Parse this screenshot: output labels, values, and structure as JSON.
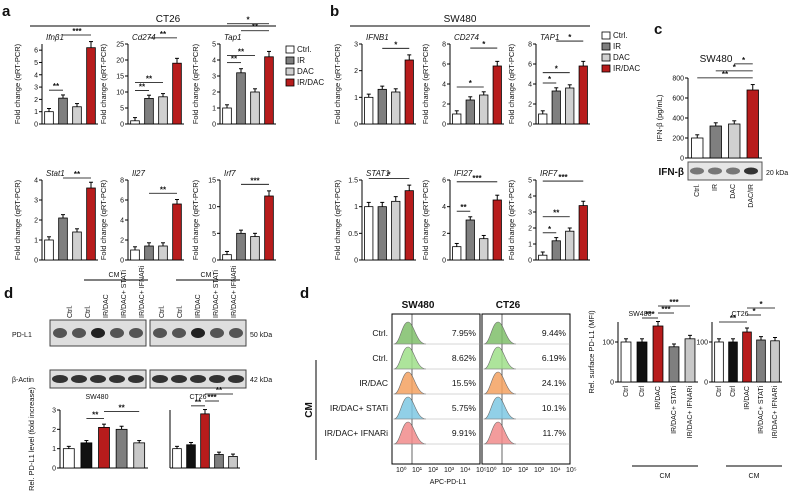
{
  "panels": {
    "a": {
      "label": "a",
      "title": "CT26",
      "charts": [
        {
          "gene": "Ifnβ1",
          "values": [
            1,
            2.1,
            1.4,
            6.2
          ],
          "ymax": 6.5,
          "ticks": [
            0,
            1,
            2,
            3,
            4,
            5,
            6
          ],
          "sig": [
            {
              "a": 0,
              "b": 1,
              "t": "**"
            },
            {
              "a": 1,
              "b": 3,
              "t": "***"
            }
          ]
        },
        {
          "gene": "Cd274",
          "values": [
            1,
            8,
            8.5,
            19
          ],
          "ymax": 25,
          "ticks": [
            0,
            5,
            10,
            15,
            20,
            25
          ],
          "sig": [
            {
              "a": 0,
              "b": 1,
              "t": "**"
            },
            {
              "a": 0,
              "b": 2,
              "t": "**"
            },
            {
              "a": 1,
              "b": 3,
              "t": "**"
            }
          ]
        },
        {
          "gene": "Tap1",
          "values": [
            1,
            3.2,
            2,
            4.2
          ],
          "ymax": 5,
          "ticks": [
            0,
            1,
            2,
            3,
            4,
            5
          ],
          "sig": [
            {
              "a": 0,
              "b": 1,
              "t": "**"
            },
            {
              "a": 0,
              "b": 2,
              "t": "**"
            },
            {
              "a": 1,
              "b": 3,
              "t": "**"
            },
            {
              "a": 0,
              "b": 3,
              "t": "*"
            }
          ]
        },
        {
          "gene": "Stat1",
          "values": [
            1,
            2.1,
            1.4,
            3.6
          ],
          "ymax": 4,
          "ticks": [
            0,
            1,
            2,
            3,
            4
          ],
          "sig": [
            {
              "a": 1,
              "b": 3,
              "t": "**"
            }
          ]
        },
        {
          "gene": "Il27",
          "values": [
            1,
            1.4,
            1.4,
            5.6
          ],
          "ymax": 8,
          "ticks": [
            0,
            2,
            4,
            6,
            8
          ],
          "sig": [
            {
              "a": 1,
              "b": 3,
              "t": "**"
            }
          ]
        },
        {
          "gene": "Irf7",
          "values": [
            1,
            5,
            4.4,
            12
          ],
          "ymax": 15,
          "ticks": [
            0,
            5,
            10,
            15
          ],
          "sig": [
            {
              "a": 1,
              "b": 3,
              "t": "***"
            }
          ]
        }
      ]
    },
    "b": {
      "label": "b",
      "title": "SW480",
      "charts": [
        {
          "gene": "IFNB1",
          "values": [
            1,
            1.3,
            1.2,
            2.4
          ],
          "ymax": 3,
          "ticks": [
            0,
            1,
            2,
            3
          ],
          "sig": [
            {
              "a": 1,
              "b": 3,
              "t": "*"
            }
          ]
        },
        {
          "gene": "CD274",
          "values": [
            1,
            2.4,
            2.9,
            5.8
          ],
          "ymax": 8,
          "ticks": [
            0,
            2,
            4,
            6,
            8
          ],
          "sig": [
            {
              "a": 0,
              "b": 2,
              "t": "*"
            },
            {
              "a": 1,
              "b": 3,
              "t": "*"
            }
          ]
        },
        {
          "gene": "TAP1",
          "values": [
            1,
            3.3,
            3.6,
            5.8
          ],
          "ymax": 8,
          "ticks": [
            0,
            2,
            4,
            6,
            8
          ],
          "sig": [
            {
              "a": 0,
              "b": 1,
              "t": "*"
            },
            {
              "a": 0,
              "b": 2,
              "t": "*"
            },
            {
              "a": 1,
              "b": 3,
              "t": "*"
            }
          ]
        },
        {
          "gene": "STAT1",
          "values": [
            1,
            1,
            1.1,
            1.3
          ],
          "ymax": 1.5,
          "ticks": [
            0,
            0.5,
            1,
            1.5
          ],
          "sig": [
            {
              "a": 0,
              "b": 3,
              "t": "*"
            }
          ]
        },
        {
          "gene": "IFI27",
          "values": [
            1,
            3,
            1.6,
            4.5
          ],
          "ymax": 6,
          "ticks": [
            0,
            2,
            4,
            6
          ],
          "sig": [
            {
              "a": 0,
              "b": 1,
              "t": "**"
            },
            {
              "a": 0,
              "b": 3,
              "t": "***"
            }
          ]
        },
        {
          "gene": "IRF7",
          "values": [
            0.3,
            1.2,
            1.8,
            3.4
          ],
          "ymax": 5,
          "ticks": [
            0,
            1,
            2,
            3,
            4,
            5
          ],
          "sig": [
            {
              "a": 0,
              "b": 1,
              "t": "*"
            },
            {
              "a": 0,
              "b": 2,
              "t": "**"
            },
            {
              "a": 0,
              "b": 3,
              "t": "***"
            }
          ]
        }
      ],
      "ylabel": "Fold change (qRT-PCR)"
    },
    "legend": [
      "Ctrl.",
      "IR",
      "DAC",
      "IR/DAC"
    ],
    "c": {
      "label": "c",
      "title": "SW480",
      "ylabel": "IFN-β (pg/mL)",
      "ticks": [
        0,
        200,
        400,
        600,
        800
      ],
      "ymax": 800,
      "categories": [
        "Ctrl.",
        "IR",
        "DAC",
        "DAC/IR"
      ],
      "values": [
        200,
        320,
        340,
        680
      ],
      "sig": [
        {
          "a": 0,
          "b": 3,
          "t": "**"
        },
        {
          "a": 1,
          "b": 3,
          "t": "*"
        },
        {
          "a": 2,
          "b": 3,
          "t": "*"
        }
      ],
      "blot_label": "IFN-β",
      "blot_kda": "20 kDa"
    },
    "d": {
      "label": "d",
      "cm": "CM",
      "lanes": [
        "Ctrl.",
        "Ctrl.",
        "IR/DAC",
        "IR/DAC+ STATi",
        "IR/DAC+ IFNARi"
      ],
      "row_labels": [
        "PD-L1",
        "β-Actin"
      ],
      "kda": [
        "50 kDa",
        "42 kDa"
      ],
      "cells": [
        "SW480",
        "CT26"
      ],
      "ylabel": "Rel. PD-L1 level (fold increase)",
      "ticks": [
        0,
        1,
        2,
        3
      ],
      "ymax": 3,
      "groups": [
        {
          "values": [
            1,
            1.3,
            2.1,
            2,
            1.3
          ],
          "sig": [
            {
              "a": 1,
              "b": 2,
              "t": "**"
            },
            {
              "a": 2,
              "b": 4,
              "t": "**"
            }
          ]
        },
        {
          "values": [
            1,
            1.2,
            2.8,
            0.7,
            0.6
          ],
          "sig": [
            {
              "a": 1,
              "b": 2,
              "t": "**"
            },
            {
              "a": 2,
              "b": 3,
              "t": "***"
            },
            {
              "a": 2,
              "b": 4,
              "t": "**"
            }
          ]
        }
      ]
    },
    "d2": {
      "label": "d",
      "cells": [
        "SW480",
        "CT26"
      ],
      "xlabel": "APC-PD-L1",
      "rows": [
        "Ctrl.",
        "Ctrl.",
        "IR/DAC",
        "IR/DAC+ STATi",
        "IR/DAC+ IFNARi"
      ],
      "cm": "CM",
      "sw480": [
        "7.95%",
        "8.62%",
        "15.5%",
        "5.75%",
        "9.91%"
      ],
      "ct26": [
        "9.44%",
        "6.19%",
        "24.1%",
        "10.1%",
        "11.7%"
      ],
      "axis_ticks": [
        "10⁰",
        "10¹",
        "10²",
        "10³",
        "10⁴",
        "10⁵"
      ],
      "bar_title": [
        "SW480",
        "CT26"
      ],
      "bar_ylabel": "Rel. surface PD-L1 (MFI)",
      "bar_sw": {
        "values": [
          100,
          100,
          140,
          88,
          108
        ],
        "ymax": 150,
        "ticks": [
          0,
          100
        ],
        "sig": [
          {
            "a": 1,
            "b": 2,
            "t": "***"
          },
          {
            "a": 2,
            "b": 3,
            "t": "***"
          },
          {
            "a": 2,
            "b": 4,
            "t": "***"
          }
        ]
      },
      "bar_ct": {
        "values": [
          100,
          100,
          125,
          105,
          103
        ],
        "ymax": 150,
        "ticks": [
          0,
          100
        ],
        "sig": [
          {
            "a": 0,
            "b": 2,
            "t": "**"
          },
          {
            "a": 2,
            "b": 3,
            "t": "*"
          },
          {
            "a": 2,
            "b": 4,
            "t": "*"
          }
        ]
      },
      "bar_cats": [
        "Ctrl",
        "Ctrl",
        "IR/DAC",
        "IR/DAC+ STATi",
        "IR/DAC+ IFNARi"
      ]
    }
  },
  "colors": {
    "fills": [
      "#ffffff",
      "#7f7f7f",
      "#d0d0d0",
      "#b71c1c"
    ],
    "fills5": [
      "#ffffff",
      "#111111",
      "#b71c1c",
      "#7f7f7f",
      "#c8c8c8"
    ],
    "hist": [
      "#7fbf6a",
      "#9fe08a",
      "#f4a261",
      "#7ec8e3",
      "#f28b8b"
    ]
  }
}
